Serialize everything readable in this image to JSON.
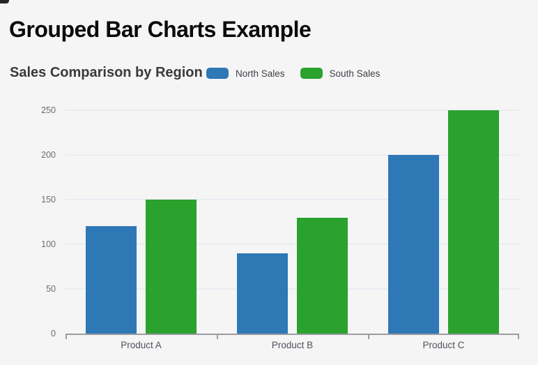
{
  "page": {
    "title": "Grouped Bar Charts Example",
    "background_color": "#f5f5f6"
  },
  "chart_data": {
    "type": "bar",
    "title": "Sales Comparison by Region",
    "categories": [
      "Product A",
      "Product B",
      "Product C"
    ],
    "series": [
      {
        "name": "North Sales",
        "color": "#2E78B6",
        "values": [
          120,
          90,
          200
        ]
      },
      {
        "name": "South Sales",
        "color": "#2AA22D",
        "values": [
          150,
          130,
          250
        ]
      }
    ],
    "xlabel": "",
    "ylabel": "",
    "ylim": [
      0,
      250
    ],
    "yticks": [
      0,
      50,
      100,
      150,
      200,
      250
    ],
    "grid": true,
    "legend_position": "top"
  }
}
